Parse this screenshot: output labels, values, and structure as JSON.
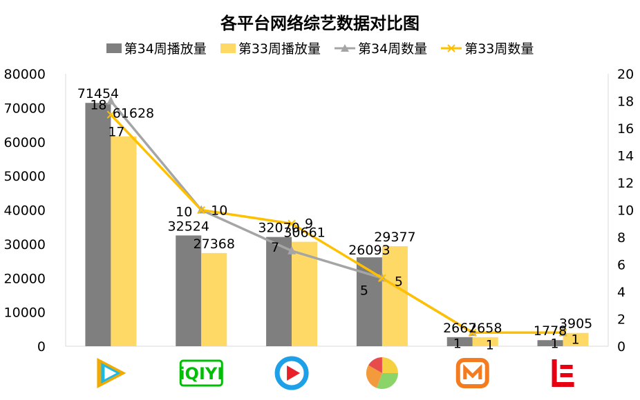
{
  "chart_data": {
    "type": "bar",
    "title": "各平台网络综艺数据对比图",
    "categories": [
      "腾讯视频",
      "爱奇艺",
      "优酷",
      "搜狐视频",
      "芒果TV",
      "乐视视频"
    ],
    "category_icons": [
      "tencent-video-logo",
      "iqiyi-logo",
      "youku-logo",
      "sohu-video-logo",
      "mango-tv-logo",
      "letv-logo"
    ],
    "series": [
      {
        "name": "第34周播放量",
        "kind": "bar",
        "axis": "left",
        "color": "#7f7f7f",
        "values": [
          71454,
          32524,
          32070,
          26093,
          2667,
          1778
        ]
      },
      {
        "name": "第33周播放量",
        "kind": "bar",
        "axis": "left",
        "color": "#ffd966",
        "values": [
          61628,
          27368,
          30661,
          29377,
          2658,
          3905
        ]
      },
      {
        "name": "第34周数量",
        "kind": "line",
        "marker": "triangle",
        "axis": "right",
        "color": "#a5a5a5",
        "values": [
          18,
          10,
          7,
          5,
          1,
          1
        ]
      },
      {
        "name": "第33周数量",
        "kind": "line",
        "marker": "x",
        "axis": "right",
        "color": "#ffc000",
        "values": [
          17,
          10,
          9,
          5,
          1,
          1
        ]
      }
    ],
    "y_left": {
      "ylim": [
        0,
        80000
      ],
      "ticks": [
        "0",
        "10000",
        "20000",
        "30000",
        "40000",
        "50000",
        "60000",
        "70000",
        "80000"
      ]
    },
    "y_right": {
      "ylim": [
        0,
        20
      ],
      "ticks": [
        "0",
        "2",
        "4",
        "6",
        "8",
        "10",
        "12",
        "14",
        "16",
        "18",
        "20"
      ]
    },
    "legend_position": "top",
    "grid": false
  }
}
